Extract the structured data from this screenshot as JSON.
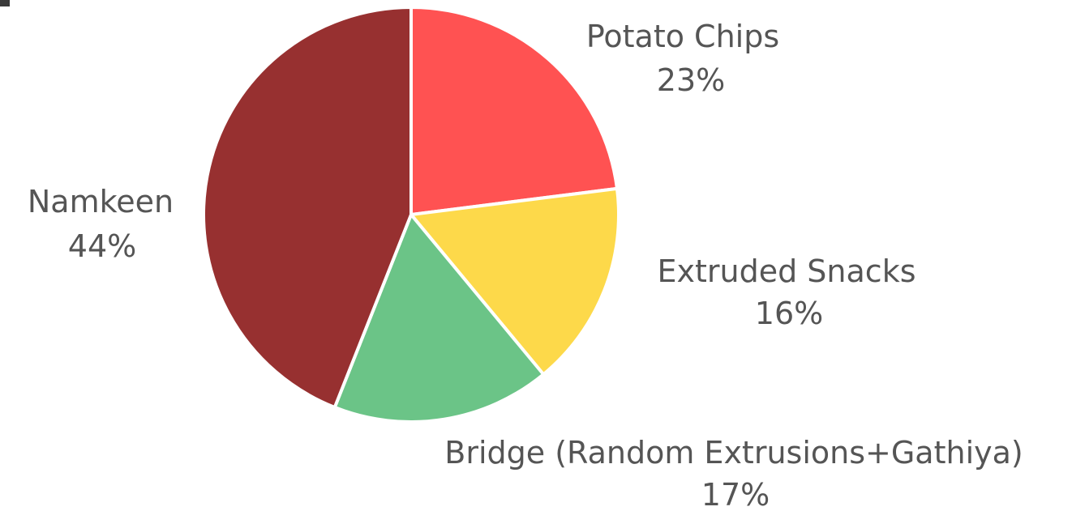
{
  "chart_data": {
    "type": "pie",
    "title": "",
    "start_angle_deg": 0,
    "direction": "clockwise",
    "slices": [
      {
        "name": "Potato Chips",
        "value": 23,
        "label": "23%",
        "color": "#FF5252"
      },
      {
        "name": "Extruded Snacks",
        "value": 16,
        "label": "16%",
        "color": "#FDD94A"
      },
      {
        "name": "Bridge (Random Extrusions+Gathiya)",
        "value": 17,
        "label": "17%",
        "color": "#6BC487"
      },
      {
        "name": "Namkeen",
        "value": 44,
        "label": "44%",
        "color": "#973030"
      }
    ]
  }
}
